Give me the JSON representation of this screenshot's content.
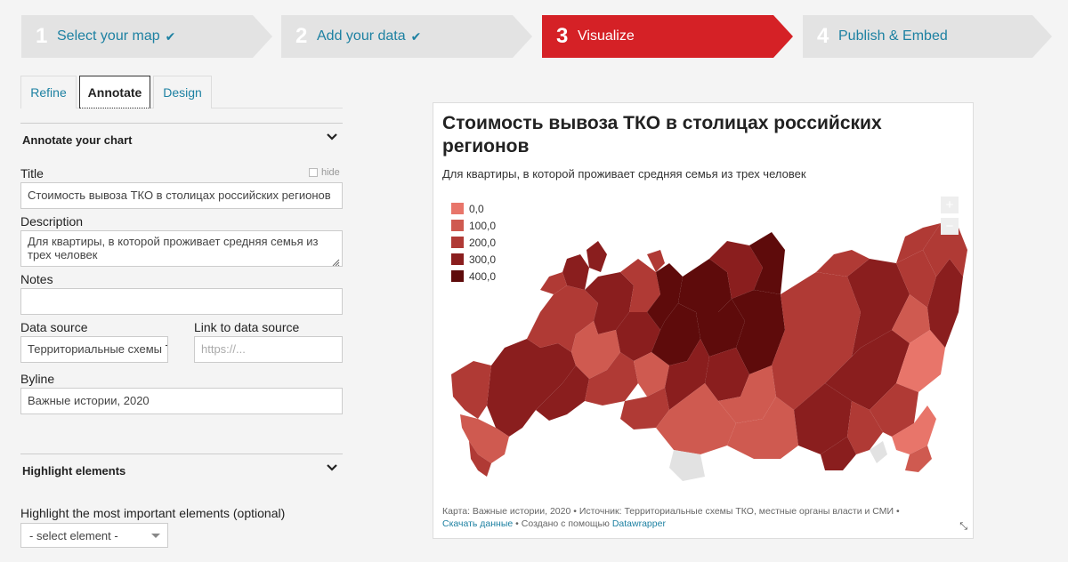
{
  "steps": [
    {
      "num": "1",
      "label": "Select your map",
      "done": true
    },
    {
      "num": "2",
      "label": "Add your data",
      "done": true
    },
    {
      "num": "3",
      "label": "Visualize",
      "done": false
    },
    {
      "num": "4",
      "label": "Publish & Embed",
      "done": false
    }
  ],
  "tabs": [
    "Refine",
    "Annotate",
    "Design"
  ],
  "annotate": {
    "heading": "Annotate your chart",
    "title_label": "Title",
    "hide_label": "hide",
    "title_value": "Стоимость вывоза ТКО в столицах российских регионов",
    "description_label": "Description",
    "description_value": "Для квартиры, в которой проживает средняя семья из трех человек",
    "notes_label": "Notes",
    "notes_value": "",
    "source_label": "Data source",
    "source_value": "Территориальные схемы ТКО, местные органы власти и СМИ",
    "link_label": "Link to data source",
    "link_placeholder": "https://...",
    "byline_label": "Byline",
    "byline_value": "Важные истории, 2020"
  },
  "highlight": {
    "heading": "Highlight elements",
    "label": "Highlight the most important elements (optional)",
    "select_value": "- select element -"
  },
  "preview": {
    "title": "Стоимость вывоза ТКО в столицах российских регионов",
    "subtitle": "Для квартиры, в которой проживает средняя семья из трех человек",
    "legend": [
      {
        "label": "0,0",
        "color": "#e8756a"
      },
      {
        "label": "100,0",
        "color": "#cf5a50"
      },
      {
        "label": "200,0",
        "color": "#b03a35"
      },
      {
        "label": "300,0",
        "color": "#8a1e1e"
      },
      {
        "label": "400,0",
        "color": "#5e0b0b"
      }
    ],
    "zoom_in": "+",
    "zoom_out": "−",
    "footer_prefix": "Карта: Важные истории, 2020 • Источник: Территориальные схемы ТКО, местные органы власти и СМИ •",
    "download": "Скачать данные",
    "made_with": " • Создано с помощью ",
    "datawrapper": "Datawrapper"
  },
  "colors": {
    "accent": "#1d81a2",
    "active_step": "#d52126"
  }
}
